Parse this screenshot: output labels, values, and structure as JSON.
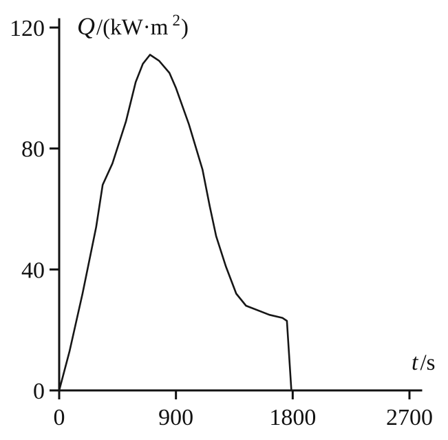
{
  "figure": {
    "background": "#ffffff",
    "ink": "#111111",
    "ylabel_parts": {
      "symbol": "Q",
      "divider": "/(kW·m",
      "superscript": "2",
      "close": ")"
    },
    "xlabel_parts": {
      "symbol": "t",
      "rest": "/s"
    }
  },
  "chart_data": {
    "type": "line",
    "title": "",
    "xlabel": "t/s",
    "ylabel": "Q/(kW·m²)",
    "xlim": [
      0,
      2700
    ],
    "ylim": [
      0,
      120
    ],
    "xticks": [
      0,
      900,
      1800,
      2700
    ],
    "yticks": [
      0,
      40,
      80,
      120
    ],
    "grid": false,
    "legend": "none",
    "line_color": "#161616",
    "series": [
      {
        "name": "heat-flux-curve",
        "x": [
          0,
          80,
          180,
          285,
          335,
          410,
          515,
          590,
          645,
          700,
          770,
          850,
          900,
          1000,
          1105,
          1160,
          1210,
          1285,
          1365,
          1440,
          1620,
          1720,
          1755,
          1790
        ],
        "y": [
          0,
          13,
          32,
          54,
          68,
          75,
          89,
          102,
          108,
          111,
          109,
          105,
          100,
          88,
          73,
          61,
          51,
          41,
          32,
          28,
          25,
          24,
          23,
          0
        ]
      }
    ]
  }
}
